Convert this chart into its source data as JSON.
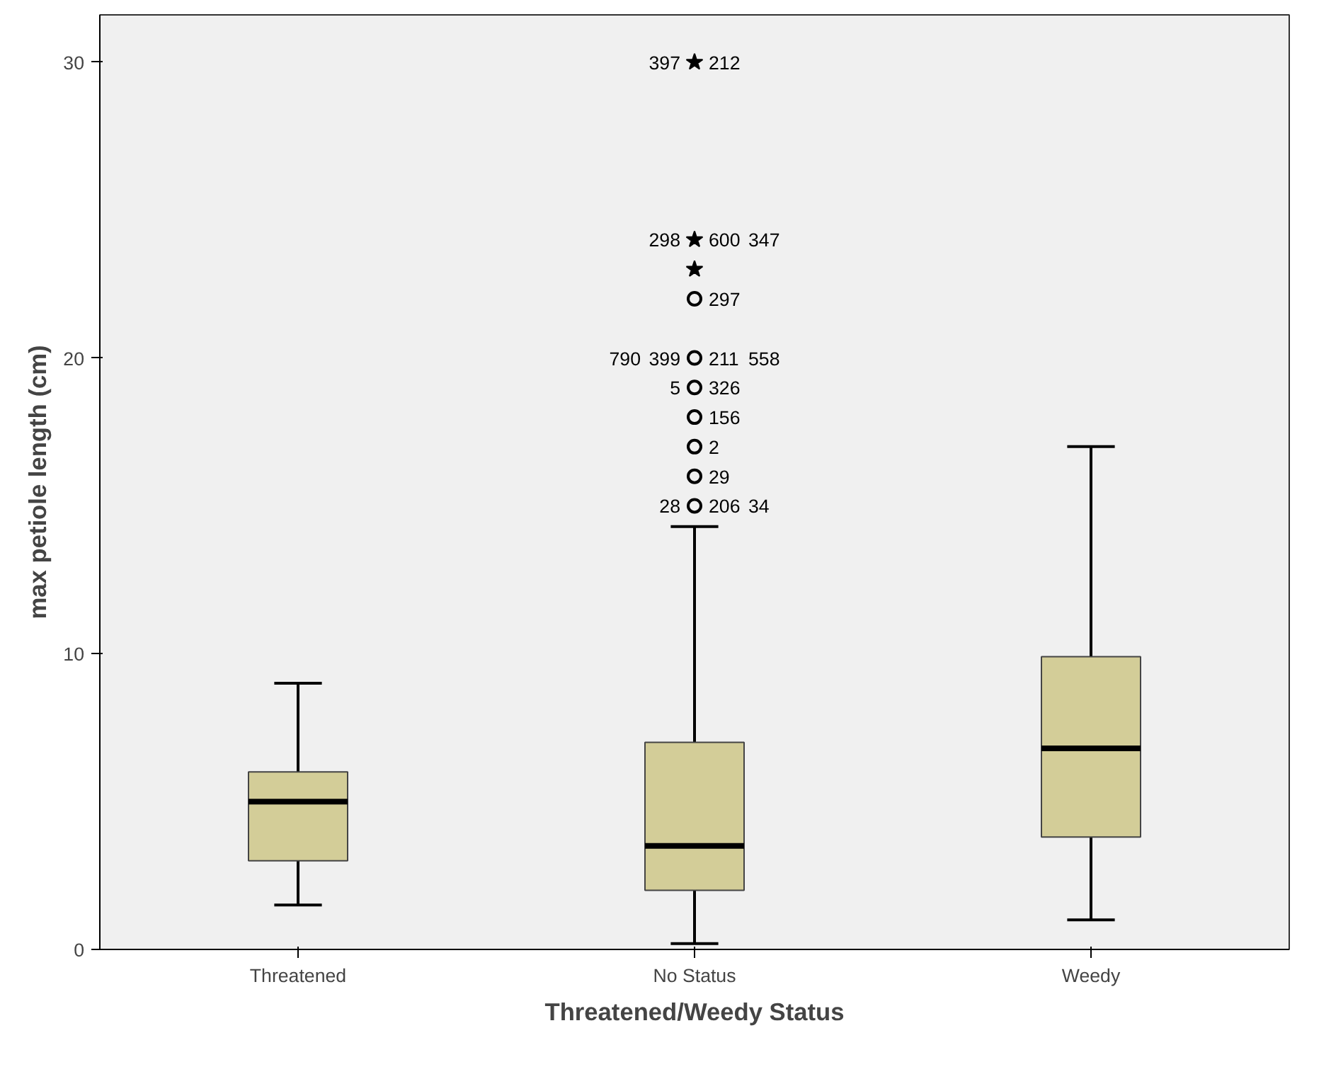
{
  "chart_data": {
    "type": "box",
    "xlabel": "Threatened/Weedy Status",
    "ylabel": "max petiole length (cm)",
    "categories": [
      "Threatened",
      "No Status",
      "Weedy"
    ],
    "series": [
      {
        "type": "box",
        "color": "#d3cd98",
        "boxes": [
          {
            "low": 1.5,
            "q1": 3,
            "median": 5,
            "q3": 6,
            "high": 9
          },
          {
            "low": 0.2,
            "q1": 2,
            "median": 3.5,
            "q3": 7,
            "high": 14.3
          },
          {
            "low": 1,
            "q1": 3.8,
            "median": 6.8,
            "q3": 9.9,
            "high": 17
          }
        ]
      },
      {
        "type": "scatter",
        "marker": "circle",
        "color": "#000000",
        "x": [
          "No Status",
          "No Status",
          "No Status",
          "No Status",
          "No Status",
          "No Status",
          "No Status"
        ],
        "values": [
          15,
          16,
          17,
          18,
          19,
          20,
          22
        ]
      },
      {
        "type": "scatter",
        "marker": "star",
        "color": "#000000",
        "x": [
          "No Status",
          "No Status",
          "No Status"
        ],
        "values": [
          30,
          24,
          23
        ]
      }
    ],
    "ylim": [
      0,
      31.6
    ],
    "yticks": [
      0,
      10,
      20,
      30
    ],
    "grid": false,
    "annotations": [
      {
        "text": "212",
        "x": "No Status",
        "y": 30
      },
      {
        "text": "397",
        "x": "No Status",
        "y": 30
      },
      {
        "text": "600",
        "x": "No Status",
        "y": 24
      },
      {
        "text": "298",
        "x": "No Status",
        "y": 24
      },
      {
        "text": "347",
        "x": "No Status",
        "y": 24
      },
      {
        "text": "297",
        "x": "No Status",
        "y": 22
      },
      {
        "text": "211",
        "x": "No Status",
        "y": 20
      },
      {
        "text": "399",
        "x": "No Status",
        "y": 20
      },
      {
        "text": "558",
        "x": "No Status",
        "y": 20
      },
      {
        "text": "790",
        "x": "No Status",
        "y": 20
      },
      {
        "text": "326",
        "x": "No Status",
        "y": 19
      },
      {
        "text": "5",
        "x": "No Status",
        "y": 19
      },
      {
        "text": "156",
        "x": "No Status",
        "y": 18
      },
      {
        "text": "2",
        "x": "No Status",
        "y": 17
      },
      {
        "text": "29",
        "x": "No Status",
        "y": 16
      },
      {
        "text": "206",
        "x": "No Status",
        "y": 15
      },
      {
        "text": "28",
        "x": "No Status",
        "y": 15
      },
      {
        "text": "34",
        "x": "No Status",
        "y": 15
      }
    ]
  }
}
